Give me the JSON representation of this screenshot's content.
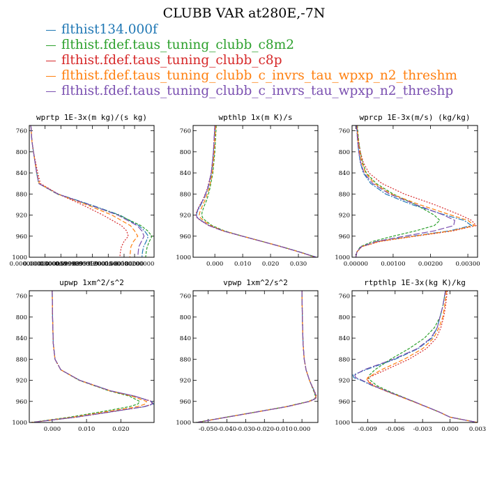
{
  "figure": {
    "title": "CLUBB VAR at280E,-7N"
  },
  "legend": [
    {
      "label": "flthist134.000f",
      "color": "#1f77b4"
    },
    {
      "label": "flthist.fdef.taus_tuning_clubb_c8m2",
      "color": "#2ca02c"
    },
    {
      "label": "flthist.fdef.taus_tuning_clubb_c8p",
      "color": "#d62728"
    },
    {
      "label": "flthist.fdef.taus_tuning_clubb_c_invrs_tau_wpxp_n2_threshm",
      "color": "#ff7f0e"
    },
    {
      "label": "flthist.fdef.taus_tuning_clubb_c_invrs_tau_wpxp_n2_threshp",
      "color": "#7a4fb0"
    }
  ],
  "chart_data": [
    {
      "type": "line",
      "title": "wprtp  1E-3x(m kg)/(s kg)",
      "ylim": [
        1000,
        750
      ],
      "yticks": [
        760,
        800,
        840,
        880,
        920,
        960,
        1000
      ],
      "xlim": [
        0.0,
        0.000237
      ],
      "xticks": [
        0.0,
        3e-05,
        6e-05,
        9e-05,
        0.00012,
        0.00015,
        0.00018,
        0.0002
      ],
      "xticklabels": [
        "0.000000000",
        "0.0000300000",
        "0.0000599999",
        "0.0000899999",
        "0.000120000",
        "0.000150000",
        "0.000180000",
        "0.000200000"
      ],
      "y": [
        750,
        780,
        800,
        820,
        840,
        860,
        880,
        900,
        920,
        940,
        950,
        960,
        970,
        980,
        990,
        1000
      ],
      "series": [
        {
          "color": "#1f77b4",
          "x": [
            3e-06,
            5e-06,
            8e-06,
            1.1e-05,
            1.4e-05,
            1.8e-05,
            5.5e-05,
            0.000115,
            0.000172,
            0.000208,
            0.000219,
            0.000226,
            0.000222,
            0.000217,
            0.000215,
            0.000214
          ]
        },
        {
          "color": "#2ca02c",
          "x": [
            3e-06,
            5e-06,
            8e-06,
            1.1e-05,
            1.4e-05,
            1.8e-05,
            5.3e-05,
            0.000112,
            0.00017,
            0.000212,
            0.000225,
            0.000233,
            0.000228,
            0.000224,
            0.000222,
            0.000221
          ]
        },
        {
          "color": "#d62728",
          "x": [
            3e-06,
            5e-06,
            8e-06,
            1.2e-05,
            1.6e-05,
            2.1e-05,
            5.5e-05,
            0.0001,
            0.00014,
            0.000175,
            0.000185,
            0.000188,
            0.00018,
            0.000175,
            0.000173,
            0.000172
          ]
        },
        {
          "color": "#ff7f0e",
          "x": [
            3e-06,
            5e-06,
            8e-06,
            1.1e-05,
            1.4e-05,
            1.9e-05,
            5.4e-05,
            0.000108,
            0.000157,
            0.000192,
            0.0002,
            0.000206,
            0.000198,
            0.000193,
            0.000192,
            0.000191
          ]
        },
        {
          "color": "#7a4fb0",
          "x": [
            3e-06,
            5e-06,
            8e-06,
            1.1e-05,
            1.4e-05,
            1.8e-05,
            5.4e-05,
            0.000113,
            0.000168,
            0.000205,
            0.000214,
            0.000218,
            0.000213,
            0.000208,
            0.000207,
            0.000206
          ]
        }
      ]
    },
    {
      "type": "line",
      "title": "wpthlp  1x(m K)/s",
      "ylim": [
        1000,
        750
      ],
      "yticks": [
        760,
        800,
        840,
        880,
        920,
        960,
        1000
      ],
      "xlim": [
        -0.0078,
        0.037
      ],
      "xticks": [
        0.0,
        0.01,
        0.02,
        0.03
      ],
      "xticklabels": [
        "0.000",
        "0.010",
        "0.020",
        "0.030"
      ],
      "y": [
        750,
        800,
        840,
        870,
        890,
        905,
        915,
        920,
        925,
        930,
        940,
        950,
        960,
        970,
        980,
        990,
        1000
      ],
      "series": [
        {
          "color": "#1f77b4",
          "x": [
            0.0,
            -0.0005,
            -0.0012,
            -0.0025,
            -0.004,
            -0.0055,
            -0.0064,
            -0.0066,
            -0.0062,
            -0.005,
            -0.002,
            0.003,
            0.01,
            0.017,
            0.024,
            0.0305,
            0.0365
          ]
        },
        {
          "color": "#2ca02c",
          "x": [
            0.0005,
            0.0,
            -0.0007,
            -0.0018,
            -0.0028,
            -0.004,
            -0.0046,
            -0.0047,
            -0.0044,
            -0.0035,
            -0.001,
            0.0035,
            0.01,
            0.017,
            0.024,
            0.0305,
            0.036
          ]
        },
        {
          "color": "#d62728",
          "x": [
            0.0,
            -0.0005,
            -0.0013,
            -0.0027,
            -0.0042,
            -0.0058,
            -0.0066,
            -0.0068,
            -0.0064,
            -0.0052,
            -0.0022,
            0.0028,
            0.0098,
            0.0168,
            0.0238,
            0.0302,
            0.0362
          ]
        },
        {
          "color": "#ff7f0e",
          "x": [
            0.0003,
            -0.0002,
            -0.0009,
            -0.0021,
            -0.0034,
            -0.0047,
            -0.0054,
            -0.0056,
            -0.0052,
            -0.0042,
            -0.0015,
            0.0032,
            0.01,
            0.017,
            0.024,
            0.0303,
            0.0362
          ]
        },
        {
          "color": "#7a4fb0",
          "x": [
            0.0,
            -0.0005,
            -0.0013,
            -0.0026,
            -0.0041,
            -0.0057,
            -0.0065,
            -0.0067,
            -0.0063,
            -0.0051,
            -0.0021,
            0.0029,
            0.0099,
            0.0169,
            0.0239,
            0.0303,
            0.0364
          ]
        }
      ]
    },
    {
      "type": "line",
      "title": "wprcp  1E-3x(m/s) (kg/kg)",
      "ylim": [
        1000,
        750
      ],
      "yticks": [
        760,
        800,
        840,
        880,
        920,
        960,
        1000
      ],
      "xlim": [
        -0.0001,
        0.00326
      ],
      "xticks": [
        0.0,
        0.001,
        0.002,
        0.003
      ],
      "xticklabels": [
        "0.00000",
        "0.00100",
        "0.00200",
        "0.00300"
      ],
      "y": [
        750,
        780,
        800,
        820,
        840,
        860,
        880,
        900,
        920,
        930,
        940,
        950,
        960,
        970,
        980,
        990,
        1000
      ],
      "series": [
        {
          "color": "#1f77b4",
          "x": [
            2e-05,
            5e-05,
            8e-05,
            0.00012,
            0.0002,
            0.0004,
            0.0008,
            0.0015,
            0.0024,
            0.0029,
            0.0031,
            0.0025,
            0.0015,
            0.0006,
            0.00015,
            3e-05,
            0.0
          ]
        },
        {
          "color": "#2ca02c",
          "x": [
            4e-05,
            8e-05,
            0.00012,
            0.00018,
            0.00028,
            0.00055,
            0.001,
            0.0016,
            0.0021,
            0.00225,
            0.0021,
            0.0016,
            0.001,
            0.00045,
            0.00012,
            3e-05,
            0.0
          ]
        },
        {
          "color": "#d62728",
          "x": [
            3e-05,
            7e-05,
            0.00012,
            0.0002,
            0.00035,
            0.0007,
            0.0013,
            0.0021,
            0.0028,
            0.0031,
            0.00322,
            0.0026,
            0.0016,
            0.00065,
            0.00016,
            3e-05,
            0.0
          ]
        },
        {
          "color": "#ff7f0e",
          "x": [
            3e-05,
            6e-05,
            0.0001,
            0.00016,
            0.00026,
            0.0005,
            0.00095,
            0.0017,
            0.00255,
            0.003,
            0.00318,
            0.00255,
            0.00155,
            0.00062,
            0.00015,
            3e-05,
            0.0
          ]
        },
        {
          "color": "#7a4fb0",
          "x": [
            2e-05,
            5e-05,
            8e-05,
            0.00013,
            0.00022,
            0.00045,
            0.0009,
            0.0016,
            0.00235,
            0.00265,
            0.00262,
            0.0021,
            0.0013,
            0.00055,
            0.00014,
            3e-05,
            0.0
          ]
        }
      ]
    },
    {
      "type": "line",
      "title": "upwp  1xm^2/s^2",
      "ylim": [
        1000,
        750
      ],
      "yticks": [
        760,
        800,
        840,
        880,
        920,
        960,
        1000
      ],
      "xlim": [
        -0.0067,
        0.0297
      ],
      "xticks": [
        0.0,
        0.01,
        0.02
      ],
      "xticklabels": [
        "0.000",
        "0.010",
        "0.020"
      ],
      "y": [
        750,
        800,
        850,
        880,
        900,
        920,
        940,
        950,
        960,
        965,
        970,
        980,
        990,
        1000
      ],
      "series": [
        {
          "color": "#1f77b4",
          "x": [
            0.0,
            0.0001,
            0.0003,
            0.0008,
            0.0025,
            0.008,
            0.017,
            0.024,
            0.029,
            0.0295,
            0.027,
            0.017,
            0.007,
            -0.006
          ]
        },
        {
          "color": "#2ca02c",
          "x": [
            0.0,
            0.0001,
            0.0003,
            0.0008,
            0.0025,
            0.0078,
            0.0165,
            0.0225,
            0.0255,
            0.025,
            0.0225,
            0.014,
            0.005,
            -0.0062
          ]
        },
        {
          "color": "#d62728",
          "x": [
            0.0,
            0.0001,
            0.0003,
            0.0008,
            0.0025,
            0.008,
            0.017,
            0.024,
            0.029,
            0.0293,
            0.0268,
            0.017,
            0.007,
            -0.006
          ]
        },
        {
          "color": "#ff7f0e",
          "x": [
            0.0,
            0.0001,
            0.0003,
            0.0008,
            0.0025,
            0.0079,
            0.0168,
            0.0232,
            0.0275,
            0.0272,
            0.0248,
            0.0155,
            0.006,
            -0.0061
          ]
        },
        {
          "color": "#7a4fb0",
          "x": [
            0.0,
            0.0001,
            0.0003,
            0.0008,
            0.0025,
            0.008,
            0.017,
            0.024,
            0.0288,
            0.0292,
            0.0268,
            0.0168,
            0.0068,
            -0.006
          ]
        }
      ]
    },
    {
      "type": "line",
      "title": "vpwp  1xm^2/s^2",
      "ylim": [
        1000,
        750
      ],
      "yticks": [
        760,
        800,
        840,
        880,
        920,
        960,
        1000
      ],
      "xlim": [
        -0.058,
        0.0085
      ],
      "xticks": [
        -0.05,
        -0.04,
        -0.03,
        -0.02,
        -0.01,
        0.0
      ],
      "xticklabels": [
        "-0.050",
        "-0.040",
        "-0.030",
        "-0.020",
        "-0.010",
        "0.000"
      ],
      "y": [
        750,
        800,
        850,
        880,
        900,
        920,
        940,
        950,
        955,
        960,
        970,
        980,
        990,
        1000
      ],
      "series": [
        {
          "color": "#1f77b4",
          "x": [
            0.0,
            0.0002,
            0.0006,
            0.0012,
            0.0022,
            0.004,
            0.0065,
            0.0075,
            0.007,
            0.004,
            -0.008,
            -0.024,
            -0.04,
            -0.056
          ]
        },
        {
          "color": "#2ca02c",
          "x": [
            0.0,
            0.0002,
            0.0006,
            0.0012,
            0.0022,
            0.004,
            0.0062,
            0.0072,
            0.0068,
            0.0035,
            -0.0085,
            -0.0245,
            -0.0405,
            -0.0565
          ]
        },
        {
          "color": "#d62728",
          "x": [
            0.0,
            0.0002,
            0.0006,
            0.0012,
            0.0022,
            0.004,
            0.0066,
            0.0078,
            0.0073,
            0.0042,
            -0.0078,
            -0.0238,
            -0.0398,
            -0.0558
          ]
        },
        {
          "color": "#ff7f0e",
          "x": [
            0.0,
            0.0002,
            0.0006,
            0.0012,
            0.0022,
            0.004,
            0.0064,
            0.0074,
            0.007,
            0.0038,
            -0.0082,
            -0.0242,
            -0.0402,
            -0.0562
          ]
        },
        {
          "color": "#7a4fb0",
          "x": [
            0.0,
            0.0002,
            0.0006,
            0.0012,
            0.0022,
            0.004,
            0.0065,
            0.0076,
            0.0071,
            0.004,
            -0.008,
            -0.024,
            -0.04,
            -0.056
          ]
        }
      ]
    },
    {
      "type": "line",
      "title": "rtpthlp  1E-3x(kg K)/kg",
      "ylim": [
        1000,
        750
      ],
      "yticks": [
        760,
        800,
        840,
        880,
        920,
        960,
        1000
      ],
      "xlim": [
        -0.0107,
        0.003
      ],
      "xticks": [
        -0.009,
        -0.006,
        -0.003,
        0.0,
        0.003
      ],
      "xticklabels": [
        "-0.009",
        "-0.006",
        "-0.003",
        "0.000",
        "0.003"
      ],
      "y": [
        750,
        780,
        800,
        820,
        840,
        860,
        880,
        900,
        910,
        915,
        920,
        930,
        940,
        960,
        980,
        990,
        1000
      ],
      "series": [
        {
          "color": "#1f77b4",
          "x": [
            -0.0005,
            -0.0008,
            -0.0011,
            -0.0014,
            -0.002,
            -0.0035,
            -0.006,
            -0.0092,
            -0.0106,
            -0.0105,
            -0.0097,
            -0.0085,
            -0.007,
            -0.004,
            -0.0012,
            0.0,
            0.003
          ]
        },
        {
          "color": "#2ca02c",
          "x": [
            -0.0005,
            -0.0008,
            -0.0011,
            -0.0017,
            -0.0028,
            -0.0045,
            -0.0065,
            -0.0082,
            -0.0088,
            -0.0089,
            -0.0087,
            -0.008,
            -0.0068,
            -0.004,
            -0.0012,
            0.0,
            0.003
          ]
        },
        {
          "color": "#d62728",
          "x": [
            -0.0003,
            -0.0005,
            -0.0007,
            -0.001,
            -0.0015,
            -0.0026,
            -0.0045,
            -0.007,
            -0.0083,
            -0.0089,
            -0.009,
            -0.0083,
            -0.007,
            -0.004,
            -0.0012,
            0.0,
            0.003
          ]
        },
        {
          "color": "#ff7f0e",
          "x": [
            -0.0004,
            -0.0006,
            -0.0008,
            -0.0012,
            -0.0018,
            -0.003,
            -0.005,
            -0.0075,
            -0.0085,
            -0.009,
            -0.0091,
            -0.0084,
            -0.0071,
            -0.0041,
            -0.0012,
            0.0,
            0.003
          ]
        },
        {
          "color": "#7a4fb0",
          "x": [
            -0.0005,
            -0.0008,
            -0.0011,
            -0.0014,
            -0.0021,
            -0.0036,
            -0.0062,
            -0.0094,
            -0.0104,
            -0.0103,
            -0.0096,
            -0.0084,
            -0.007,
            -0.004,
            -0.0012,
            0.0,
            0.003
          ]
        }
      ]
    }
  ]
}
